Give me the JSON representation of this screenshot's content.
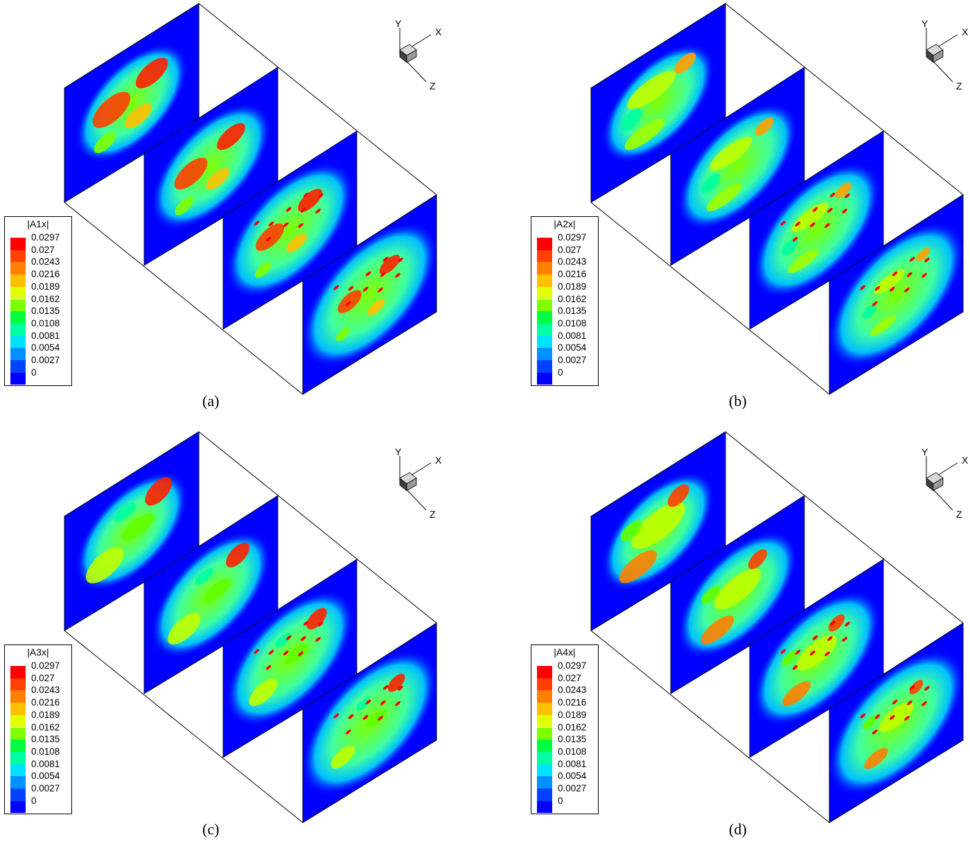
{
  "figure": {
    "panels": [
      {
        "id": "a",
        "caption": "(a)",
        "legend_title": "|A1x|"
      },
      {
        "id": "b",
        "caption": "(b)",
        "legend_title": "|A2x|"
      },
      {
        "id": "c",
        "caption": "(c)",
        "legend_title": "|A3x|"
      },
      {
        "id": "d",
        "caption": "(d)",
        "legend_title": "|A4x|"
      }
    ],
    "legend_levels": [
      "0.0297",
      "0.027",
      "0.0243",
      "0.0216",
      "0.0189",
      "0.0162",
      "0.0135",
      "0.0108",
      "0.0081",
      "0.0054",
      "0.0027",
      "0"
    ],
    "axes": {
      "x": "X",
      "y": "Y",
      "z": "Z"
    },
    "colormap": [
      "#ff0000",
      "#ff4000",
      "#ff8000",
      "#ffc000",
      "#e0ff00",
      "#80ff00",
      "#00ff40",
      "#00ffa0",
      "#00e0ff",
      "#0090ff",
      "#0040ff",
      "#0000ff"
    ]
  }
}
